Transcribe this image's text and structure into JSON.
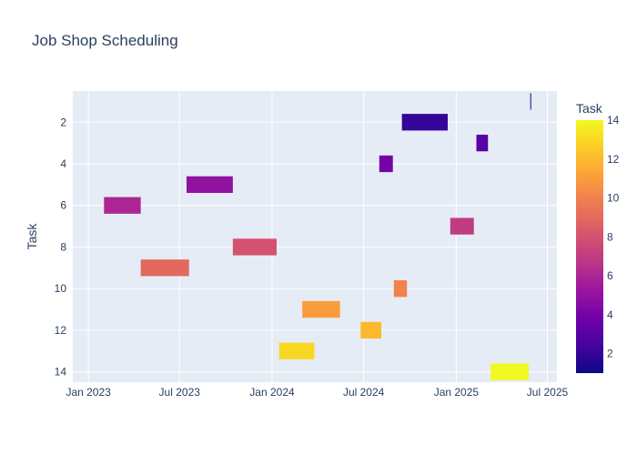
{
  "chart_data": {
    "type": "bar",
    "orientation": "horizontal-timeline",
    "title": "Job Shop Scheduling",
    "xlabel": "",
    "ylabel": "Task",
    "x_axis_type": "date",
    "x_range": [
      "2022-12-01",
      "2025-07-20"
    ],
    "y_range": [
      14.5,
      0.5
    ],
    "y_reversed": true,
    "x_tick_labels": [
      "Jan 2023",
      "Jul 2023",
      "Jan 2024",
      "Jul 2024",
      "Jan 2025",
      "Jul 2025"
    ],
    "x_tick_values": [
      "2023-01-01",
      "2023-07-01",
      "2024-01-01",
      "2024-07-01",
      "2025-01-01",
      "2025-07-01"
    ],
    "y_tick_labels": [
      "2",
      "4",
      "6",
      "8",
      "10",
      "12",
      "14"
    ],
    "y_tick_values": [
      2,
      4,
      6,
      8,
      10,
      12,
      14
    ],
    "grid": true,
    "legend": "none",
    "colorbar": {
      "title": "Task",
      "range": [
        1,
        14
      ],
      "tick_labels": [
        "2",
        "4",
        "6",
        "8",
        "10",
        "12",
        "14"
      ],
      "tick_values": [
        2,
        4,
        6,
        8,
        10,
        12,
        14
      ],
      "colorscale": [
        "#0d0887",
        "#46039f",
        "#7201a8",
        "#9c179e",
        "#bd3786",
        "#d8576b",
        "#ed7953",
        "#fb9f3a",
        "#fdca26",
        "#f0f921"
      ]
    },
    "tasks": [
      {
        "task": 1,
        "start": "2025-05-28",
        "end": "2025-05-29"
      },
      {
        "task": 2,
        "start": "2024-09-15",
        "end": "2024-12-15"
      },
      {
        "task": 3,
        "start": "2025-02-10",
        "end": "2025-03-05"
      },
      {
        "task": 4,
        "start": "2024-08-01",
        "end": "2024-08-28"
      },
      {
        "task": 5,
        "start": "2023-07-15",
        "end": "2023-10-15"
      },
      {
        "task": 6,
        "start": "2023-02-01",
        "end": "2023-04-15"
      },
      {
        "task": 7,
        "start": "2024-12-20",
        "end": "2025-02-05"
      },
      {
        "task": 8,
        "start": "2023-10-15",
        "end": "2024-01-10"
      },
      {
        "task": 9,
        "start": "2023-04-15",
        "end": "2023-07-20"
      },
      {
        "task": 10,
        "start": "2024-08-30",
        "end": "2024-09-25"
      },
      {
        "task": 11,
        "start": "2024-03-01",
        "end": "2024-05-15"
      },
      {
        "task": 12,
        "start": "2024-06-25",
        "end": "2024-08-05"
      },
      {
        "task": 13,
        "start": "2024-01-15",
        "end": "2024-03-25"
      },
      {
        "task": 14,
        "start": "2025-03-10",
        "end": "2025-05-25"
      }
    ]
  }
}
